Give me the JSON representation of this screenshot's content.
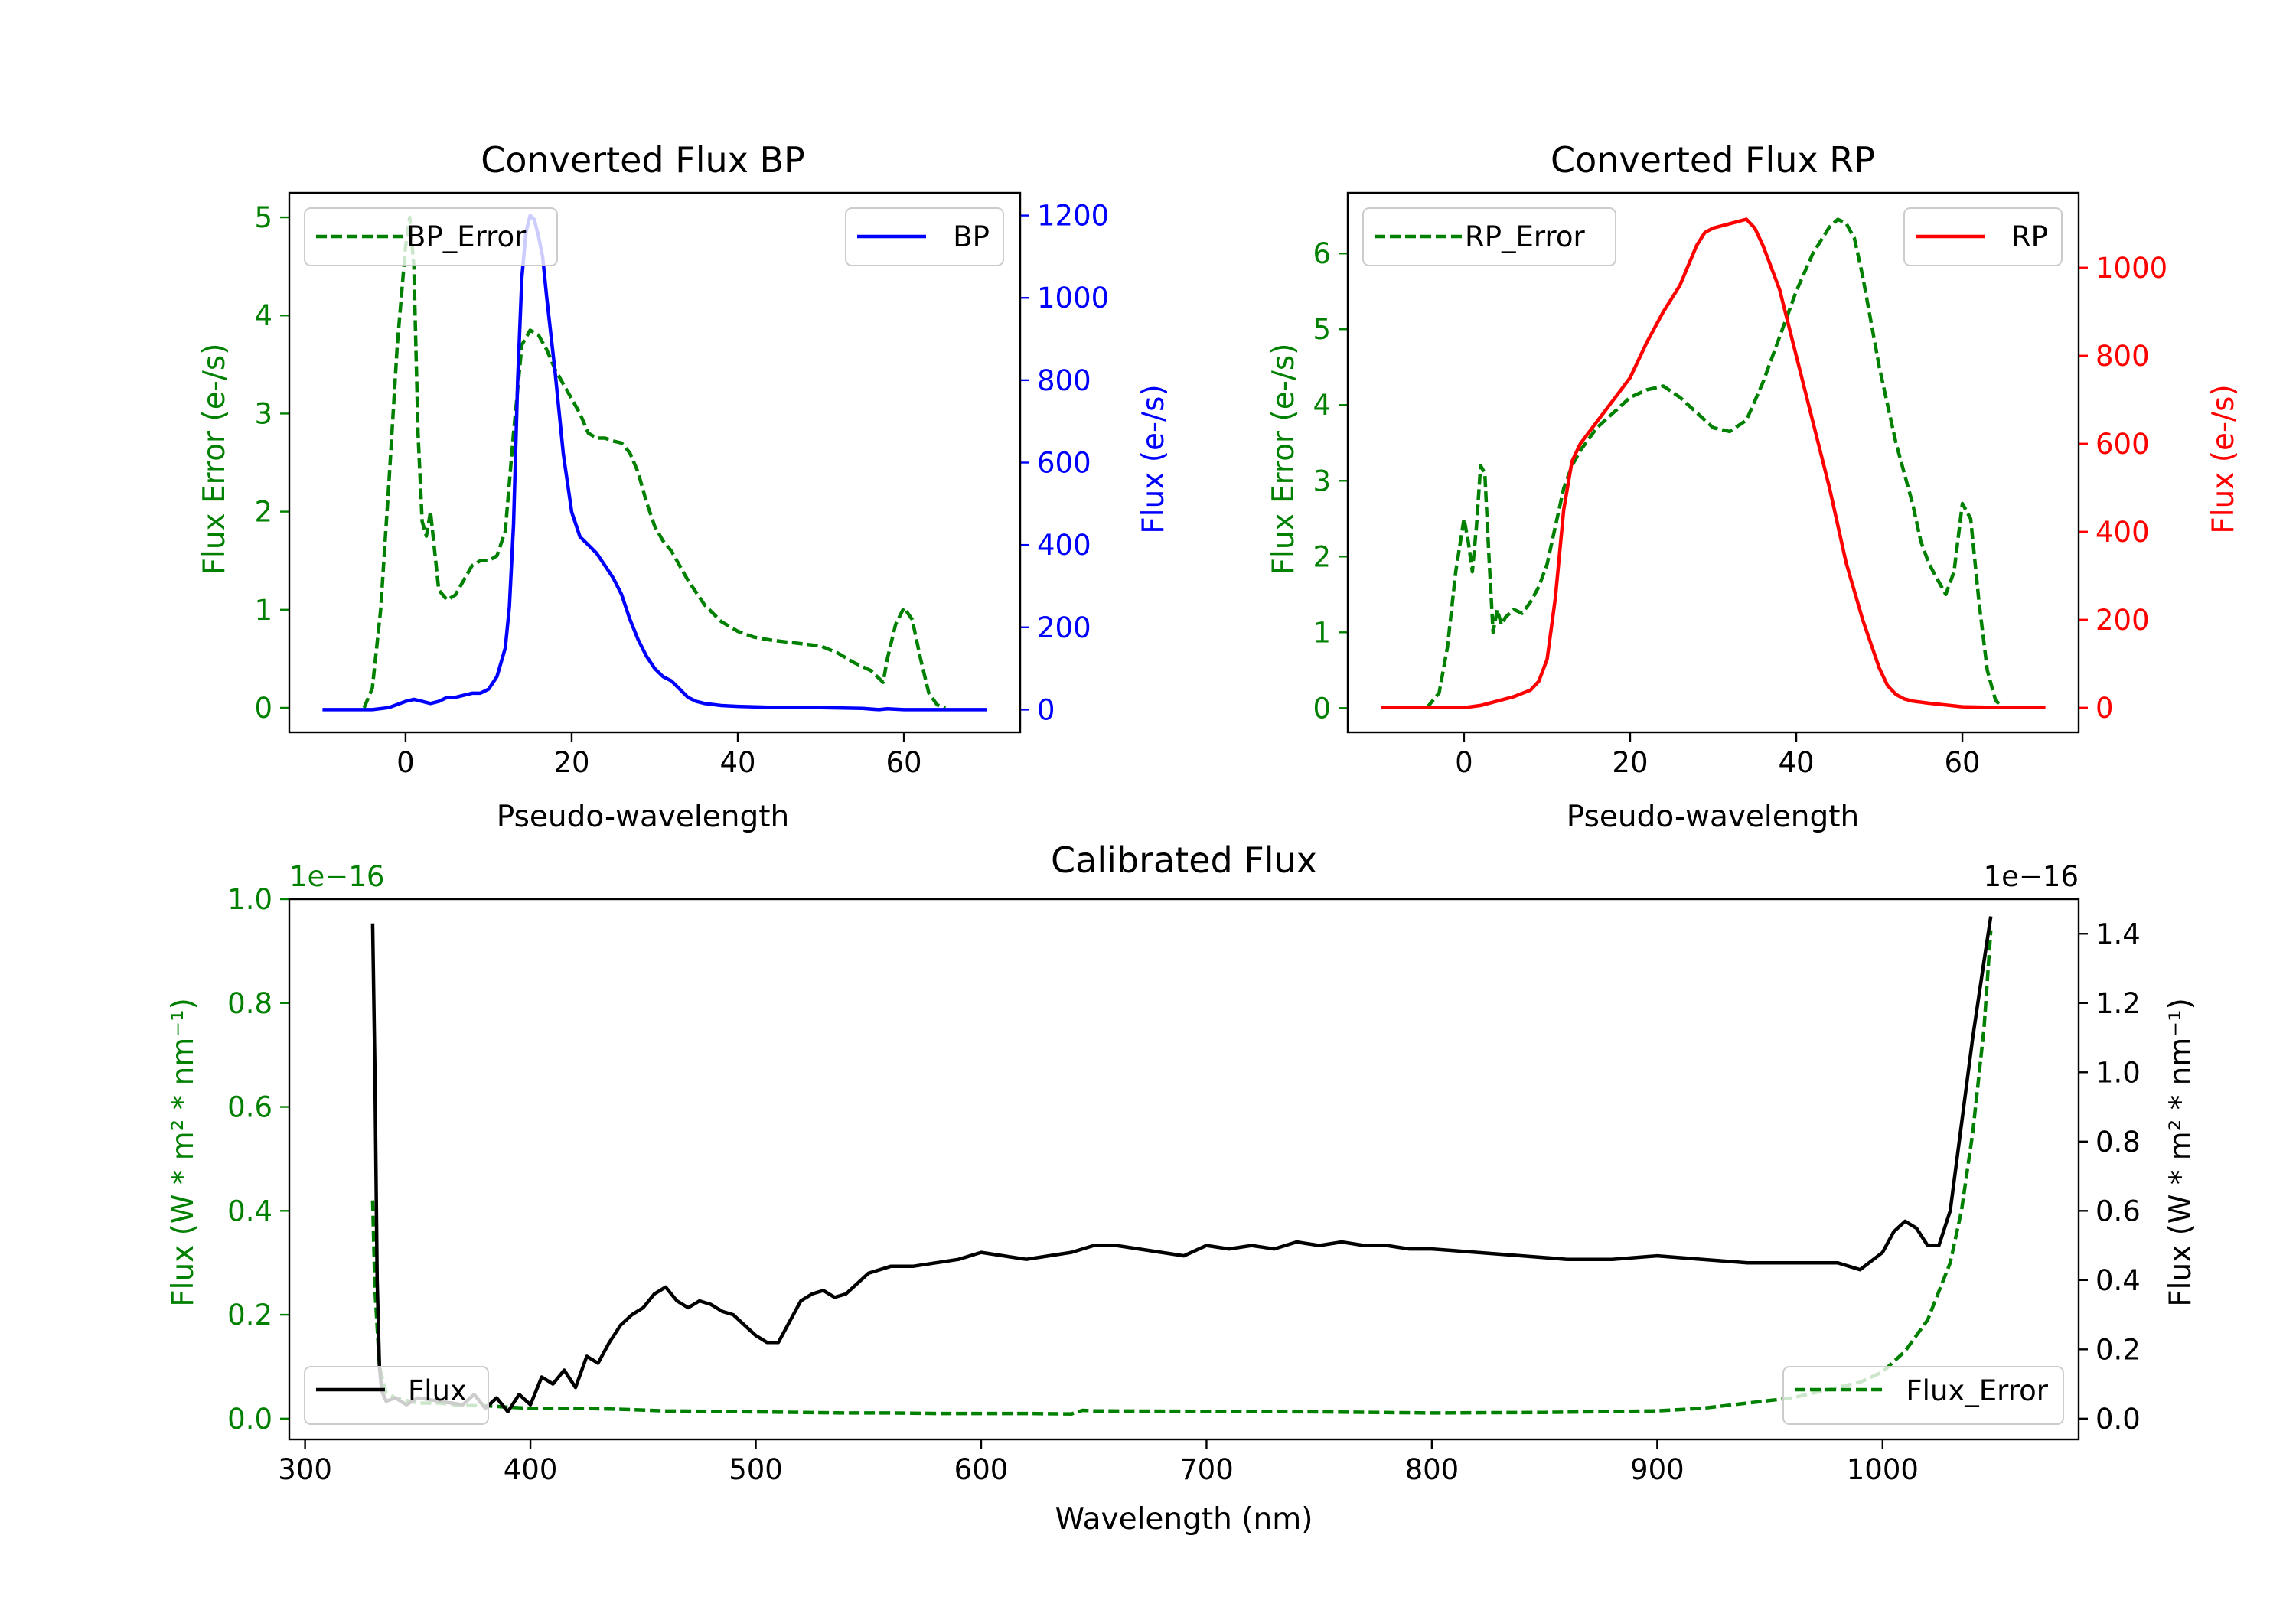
{
  "chart_data": [
    {
      "id": "bp",
      "type": "line",
      "title": "Converted Flux BP",
      "xlabel": "Pseudo-wavelength",
      "xlim": [
        -14,
        74
      ],
      "xticks": [
        0,
        20,
        40,
        60
      ],
      "y_left": {
        "label": "Flux Error (e-/s)",
        "color": "#008000",
        "lim": [
          -0.25,
          5.25
        ],
        "ticks": [
          0,
          1,
          2,
          3,
          4,
          5
        ],
        "tick_labels": [
          "0",
          "1",
          "2",
          "3",
          "4",
          "5"
        ]
      },
      "y_right": {
        "label": "Flux (e-/s)",
        "color": "#0000ff",
        "lim": [
          -55,
          1255
        ],
        "ticks": [
          0,
          200,
          400,
          600,
          800,
          1000,
          1200
        ],
        "tick_labels": [
          "0",
          "200",
          "400",
          "600",
          "800",
          "1000",
          "1200"
        ]
      },
      "series": [
        {
          "name": "BP_Error",
          "axis": "left",
          "color": "#008000",
          "style": "dashed",
          "legend": "top-left",
          "x": [
            -5,
            -4,
            -3,
            -2,
            -1,
            0,
            0.5,
            1,
            1.5,
            2,
            2.5,
            3,
            3.5,
            4,
            5,
            6,
            7,
            8,
            9,
            10,
            11,
            12,
            13,
            14,
            15,
            16,
            17,
            18,
            19,
            20,
            21,
            22,
            23,
            24,
            25,
            26,
            27,
            28,
            29,
            30,
            31,
            32,
            34,
            36,
            38,
            40,
            42,
            44,
            46,
            48,
            50,
            52,
            54,
            56,
            57,
            57.5,
            58,
            59,
            60,
            61,
            62,
            63,
            64,
            65
          ],
          "y": [
            0,
            0.2,
            1.0,
            2.3,
            3.7,
            4.7,
            5.0,
            4.5,
            2.8,
            1.9,
            1.75,
            2.0,
            1.6,
            1.2,
            1.1,
            1.15,
            1.3,
            1.45,
            1.5,
            1.5,
            1.55,
            1.8,
            2.8,
            3.7,
            3.85,
            3.8,
            3.65,
            3.45,
            3.3,
            3.15,
            3.0,
            2.8,
            2.75,
            2.75,
            2.72,
            2.7,
            2.6,
            2.4,
            2.1,
            1.85,
            1.7,
            1.6,
            1.3,
            1.05,
            0.88,
            0.78,
            0.72,
            0.69,
            0.67,
            0.65,
            0.63,
            0.56,
            0.46,
            0.38,
            0.3,
            0.26,
            0.5,
            0.85,
            1.02,
            0.9,
            0.5,
            0.15,
            0.03,
            0
          ]
        },
        {
          "name": "BP",
          "axis": "right",
          "color": "#0000ff",
          "style": "solid",
          "legend": "top-right",
          "x": [
            -10,
            -8,
            -6,
            -4,
            -2,
            0,
            1,
            2,
            3,
            4,
            5,
            6,
            7,
            8,
            9,
            10,
            11,
            12,
            12.5,
            13,
            13.5,
            14,
            14.5,
            15,
            15.5,
            16,
            16.5,
            17,
            18,
            19,
            20,
            21,
            22,
            23,
            24,
            25,
            26,
            27,
            28,
            29,
            30,
            31,
            32,
            33,
            34,
            35,
            36,
            38,
            40,
            45,
            50,
            55,
            57,
            58,
            60,
            65,
            70
          ],
          "y": [
            0,
            0,
            0,
            0,
            5,
            20,
            25,
            20,
            15,
            20,
            30,
            30,
            35,
            40,
            40,
            50,
            80,
            150,
            250,
            450,
            800,
            1050,
            1160,
            1200,
            1190,
            1150,
            1100,
            1000,
            820,
            620,
            480,
            420,
            400,
            380,
            350,
            320,
            280,
            220,
            170,
            130,
            100,
            80,
            70,
            50,
            30,
            20,
            15,
            10,
            8,
            5,
            5,
            3,
            0,
            2,
            0,
            0,
            0
          ]
        }
      ]
    },
    {
      "id": "rp",
      "type": "line",
      "title": "Converted Flux RP",
      "xlabel": "Pseudo-wavelength",
      "xlim": [
        -14,
        74
      ],
      "xticks": [
        0,
        20,
        40,
        60
      ],
      "y_left": {
        "label": "Flux Error (e-/s)",
        "color": "#008000",
        "lim": [
          -0.32,
          6.8
        ],
        "ticks": [
          0,
          1,
          2,
          3,
          4,
          5,
          6
        ],
        "tick_labels": [
          "0",
          "1",
          "2",
          "3",
          "4",
          "5",
          "6"
        ]
      },
      "y_right": {
        "label": "Flux (e-/s)",
        "color": "#ff0000",
        "lim": [
          -56,
          1170
        ],
        "ticks": [
          0,
          200,
          400,
          600,
          800,
          1000
        ],
        "tick_labels": [
          "0",
          "200",
          "400",
          "600",
          "800",
          "1000"
        ]
      },
      "series": [
        {
          "name": "RP_Error",
          "axis": "left",
          "color": "#008000",
          "style": "dashed",
          "legend": "top-left",
          "x": [
            -4.5,
            -3,
            -2,
            -1,
            0,
            0.5,
            1,
            1.5,
            2,
            2.5,
            3,
            3.5,
            4,
            4.5,
            5,
            6,
            7,
            8,
            9,
            10,
            11,
            12,
            13,
            14,
            16,
            18,
            20,
            22,
            24,
            26,
            28,
            30,
            32,
            34,
            36,
            38,
            40,
            42,
            44,
            45,
            46,
            47,
            48,
            50,
            52,
            54,
            55,
            56,
            57,
            58,
            59,
            60,
            61,
            62,
            63,
            64,
            65
          ],
          "y": [
            0,
            0.2,
            0.8,
            1.8,
            2.5,
            2.2,
            1.8,
            2.4,
            3.2,
            3.1,
            2.0,
            1.0,
            1.3,
            1.1,
            1.2,
            1.3,
            1.25,
            1.4,
            1.6,
            1.9,
            2.4,
            2.9,
            3.2,
            3.4,
            3.7,
            3.9,
            4.1,
            4.2,
            4.25,
            4.1,
            3.9,
            3.7,
            3.65,
            3.8,
            4.3,
            4.9,
            5.5,
            6.0,
            6.35,
            6.45,
            6.4,
            6.2,
            5.7,
            4.5,
            3.5,
            2.7,
            2.2,
            1.9,
            1.7,
            1.5,
            1.8,
            2.7,
            2.5,
            1.4,
            0.5,
            0.1,
            0
          ]
        },
        {
          "name": "RP",
          "axis": "right",
          "color": "#ff0000",
          "style": "solid",
          "legend": "top-right",
          "x": [
            -10,
            -5,
            0,
            2,
            4,
            6,
            8,
            9,
            10,
            11,
            12,
            13,
            14,
            16,
            18,
            20,
            22,
            24,
            26,
            28,
            29,
            30,
            32,
            34,
            35,
            36,
            38,
            40,
            42,
            44,
            46,
            48,
            50,
            51,
            52,
            53,
            54,
            56,
            60,
            65,
            70
          ],
          "y": [
            0,
            0,
            0,
            5,
            15,
            25,
            40,
            60,
            110,
            250,
            450,
            560,
            600,
            650,
            700,
            750,
            830,
            900,
            960,
            1050,
            1080,
            1090,
            1100,
            1110,
            1090,
            1050,
            950,
            800,
            650,
            500,
            330,
            200,
            90,
            50,
            30,
            20,
            15,
            10,
            2,
            0,
            0
          ]
        }
      ]
    },
    {
      "id": "calibrated",
      "type": "line",
      "title": "Calibrated Flux",
      "xlabel": "Wavelength (nm)",
      "xlim": [
        293,
        1087
      ],
      "xticks": [
        300,
        400,
        500,
        600,
        700,
        800,
        900,
        1000
      ],
      "y_left": {
        "label": "Flux (W * m² * nm⁻¹)",
        "color": "#008000",
        "lim": [
          -0.04,
          1.0
        ],
        "offset_text": "1e−16",
        "ticks": [
          0,
          0.2,
          0.4,
          0.6,
          0.8,
          1.0
        ],
        "tick_labels": [
          "0.0",
          "0.2",
          "0.4",
          "0.6",
          "0.8",
          "1.0"
        ]
      },
      "y_right": {
        "label": "Flux (W * m² * nm⁻¹)",
        "color": "#000000",
        "lim": [
          -0.06,
          1.5
        ],
        "offset_text": "1e−16",
        "ticks": [
          0,
          0.2,
          0.4,
          0.6,
          0.8,
          1.0,
          1.2,
          1.4
        ],
        "tick_labels": [
          "0.0",
          "0.2",
          "0.4",
          "0.6",
          "0.8",
          "1.0",
          "1.2",
          "1.4"
        ]
      },
      "series": [
        {
          "name": "Flux",
          "axis": "right",
          "color": "#000000",
          "style": "solid",
          "legend": "bottom-left",
          "x": [
            330,
            331,
            332,
            333,
            334,
            336,
            340,
            345,
            350,
            360,
            370,
            375,
            380,
            385,
            390,
            395,
            400,
            405,
            410,
            415,
            420,
            425,
            430,
            435,
            440,
            445,
            450,
            455,
            460,
            465,
            470,
            475,
            480,
            485,
            490,
            495,
            500,
            505,
            510,
            515,
            520,
            525,
            530,
            535,
            540,
            550,
            560,
            570,
            580,
            590,
            600,
            610,
            620,
            630,
            640,
            650,
            660,
            670,
            680,
            690,
            700,
            710,
            720,
            730,
            740,
            750,
            760,
            770,
            780,
            790,
            800,
            820,
            840,
            860,
            880,
            900,
            920,
            940,
            960,
            980,
            990,
            1000,
            1005,
            1010,
            1015,
            1020,
            1025,
            1030,
            1035,
            1040,
            1045,
            1048
          ],
          "y": [
            1.43,
            1.0,
            0.4,
            0.15,
            0.08,
            0.05,
            0.06,
            0.04,
            0.06,
            0.05,
            0.04,
            0.07,
            0.03,
            0.06,
            0.02,
            0.07,
            0.04,
            0.12,
            0.1,
            0.14,
            0.09,
            0.18,
            0.16,
            0.22,
            0.27,
            0.3,
            0.32,
            0.36,
            0.38,
            0.34,
            0.32,
            0.34,
            0.33,
            0.31,
            0.3,
            0.27,
            0.24,
            0.22,
            0.22,
            0.28,
            0.34,
            0.36,
            0.37,
            0.35,
            0.36,
            0.42,
            0.44,
            0.44,
            0.45,
            0.46,
            0.48,
            0.47,
            0.46,
            0.47,
            0.48,
            0.5,
            0.5,
            0.49,
            0.48,
            0.47,
            0.5,
            0.49,
            0.5,
            0.49,
            0.51,
            0.5,
            0.51,
            0.5,
            0.5,
            0.49,
            0.49,
            0.48,
            0.47,
            0.46,
            0.46,
            0.47,
            0.46,
            0.45,
            0.45,
            0.45,
            0.43,
            0.48,
            0.54,
            0.57,
            0.55,
            0.5,
            0.5,
            0.6,
            0.85,
            1.1,
            1.32,
            1.45
          ]
        },
        {
          "name": "Flux_Error",
          "axis": "left",
          "color": "#008000",
          "style": "dashed",
          "legend": "bottom-right",
          "x": [
            330,
            331,
            333,
            336,
            340,
            345,
            350,
            360,
            370,
            380,
            390,
            400,
            420,
            440,
            460,
            480,
            500,
            520,
            540,
            560,
            580,
            600,
            620,
            640,
            645,
            650,
            700,
            750,
            800,
            850,
            900,
            920,
            940,
            960,
            980,
            990,
            1000,
            1010,
            1020,
            1030,
            1035,
            1040,
            1045,
            1048
          ],
          "y": [
            0.42,
            0.25,
            0.1,
            0.05,
            0.04,
            0.035,
            0.03,
            0.03,
            0.025,
            0.025,
            0.022,
            0.02,
            0.02,
            0.018,
            0.015,
            0.014,
            0.013,
            0.012,
            0.011,
            0.011,
            0.01,
            0.01,
            0.01,
            0.009,
            0.016,
            0.015,
            0.014,
            0.013,
            0.011,
            0.012,
            0.015,
            0.02,
            0.03,
            0.04,
            0.06,
            0.07,
            0.09,
            0.13,
            0.19,
            0.3,
            0.4,
            0.55,
            0.75,
            0.94
          ]
        }
      ]
    }
  ]
}
